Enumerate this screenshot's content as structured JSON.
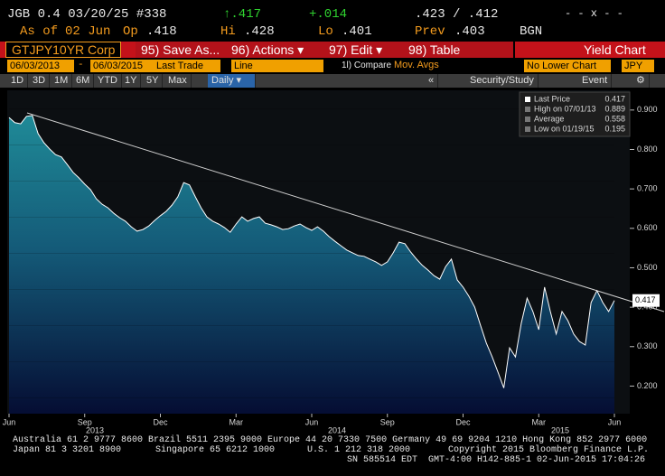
{
  "quote": {
    "security": "JGB 0.4 03/20/25 #338",
    "last": "↑.417",
    "change": "+.014",
    "bid_ask": ".423 / .412",
    "flags": "- - x - -"
  },
  "quote2": {
    "as_of_label": "As of",
    "as_of": "02 Jun",
    "open_label": "Op",
    "open": ".418",
    "high_label": "Hi",
    "high": ".428",
    "low_label": "Lo",
    "low": ".401",
    "prev_label": "Prev",
    "prev": ".403",
    "source": "BGN"
  },
  "toolbar": {
    "ticker": "GTJPY10YR Corp",
    "buttons": [
      "95) Save As...",
      "96) Actions ▾",
      "97) Edit ▾",
      "98) Table"
    ],
    "title": "Yield Chart"
  },
  "settings": {
    "start": "06/03/2013",
    "dash": "-",
    "end": "06/03/2015",
    "field": "Last Trade",
    "style": "Line",
    "compare": "1l) Compare",
    "mov": "Mov. Avgs",
    "lower": "No Lower Chart",
    "currency": "JPY"
  },
  "periods": {
    "items": [
      "1D",
      "3D",
      "1M",
      "6M",
      "YTD",
      "1Y",
      "5Y",
      "Max"
    ],
    "selected": "Daily ▾",
    "collapse": "«",
    "study": "Security/Study",
    "event": "Event",
    "gear": "⚙"
  },
  "chart_data": {
    "type": "line",
    "categories": [
      "Jun",
      null,
      null,
      null,
      null,
      null,
      null,
      null,
      null,
      null,
      null,
      null,
      null,
      "Sep",
      null,
      null,
      null,
      null,
      null,
      null,
      null,
      null,
      null,
      null,
      null,
      null,
      "Dec",
      null,
      null,
      null,
      null,
      null,
      null,
      null,
      null,
      null,
      null,
      null,
      null,
      "Mar",
      null,
      null,
      null,
      null,
      null,
      null,
      null,
      null,
      null,
      null,
      null,
      null,
      "Jun",
      null,
      null,
      null,
      null,
      null,
      null,
      null,
      null,
      null,
      null,
      null,
      null,
      "Sep",
      null,
      null,
      null,
      null,
      null,
      null,
      null,
      null,
      null,
      null,
      null,
      null,
      "Dec",
      null,
      null,
      null,
      null,
      null,
      null,
      null,
      null,
      null,
      null,
      null,
      null,
      "Mar",
      null,
      null,
      null,
      null,
      null,
      null,
      null,
      null,
      null,
      null,
      null,
      null,
      "Jun"
    ],
    "years": [
      "2013",
      "2014",
      "2015"
    ],
    "series": [
      {
        "name": "Last Price",
        "color": "#ffffff",
        "values": [
          0.881,
          0.868,
          0.865,
          0.884,
          0.886,
          0.84,
          0.817,
          0.801,
          0.787,
          0.781,
          0.762,
          0.742,
          0.728,
          0.712,
          0.698,
          0.675,
          0.661,
          0.652,
          0.638,
          0.627,
          0.618,
          0.604,
          0.593,
          0.597,
          0.606,
          0.62,
          0.632,
          0.643,
          0.659,
          0.68,
          0.716,
          0.71,
          0.68,
          0.652,
          0.629,
          0.618,
          0.611,
          0.602,
          0.59,
          0.611,
          0.629,
          0.618,
          0.625,
          0.629,
          0.613,
          0.609,
          0.604,
          0.597,
          0.599,
          0.606,
          0.611,
          0.602,
          0.595,
          0.604,
          0.593,
          0.579,
          0.567,
          0.556,
          0.545,
          0.538,
          0.531,
          0.529,
          0.522,
          0.515,
          0.506,
          0.515,
          0.538,
          0.565,
          0.561,
          0.54,
          0.522,
          0.506,
          0.494,
          0.48,
          0.471,
          0.503,
          0.522,
          0.469,
          0.451,
          0.428,
          0.4,
          0.354,
          0.309,
          0.274,
          0.235,
          0.195,
          0.297,
          0.274,
          0.359,
          0.423,
          0.389,
          0.343,
          0.451,
          0.389,
          0.332,
          0.389,
          0.366,
          0.332,
          0.313,
          0.304,
          0.412,
          0.442,
          0.412,
          0.389,
          0.417
        ]
      }
    ],
    "ylim": [
      0.13,
      0.95
    ],
    "yticks": [
      {
        "value": 0.9,
        "label": "0.900"
      },
      {
        "value": 0.8,
        "label": "0.800"
      },
      {
        "value": 0.7,
        "label": "0.700"
      },
      {
        "value": 0.6,
        "label": "0.600"
      },
      {
        "value": 0.5,
        "label": "0.500"
      },
      {
        "value": 0.4,
        "label": "0.400"
      },
      {
        "value": 0.3,
        "label": "0.300"
      },
      {
        "value": 0.2,
        "label": "0.200"
      }
    ],
    "grid": false,
    "last_tag": "0.417",
    "legend": [
      {
        "label": "Last Price",
        "value": "0.417"
      },
      {
        "label": "High on 07/01/13",
        "value": "0.889"
      },
      {
        "label": "Average",
        "value": "0.558"
      },
      {
        "label": "Low on 01/19/15",
        "value": "0.195"
      }
    ]
  },
  "footer": {
    "line1": "Australia 61 2 9777 8600 Brazil 5511 2395 9000 Europe 44 20 7330 7500 Germany 49 69 9204 1210 Hong Kong 852 2977 6000",
    "line2": [
      "Japan 81 3 3201 8900",
      "Singapore 65 6212 1000",
      "U.S. 1 212 318 2000",
      "Copyright 2015 Bloomberg Finance L.P."
    ],
    "line3": "SN 585514 EDT  GMT-4:00 H142-885-1 02-Jun-2015 17:04:26"
  }
}
